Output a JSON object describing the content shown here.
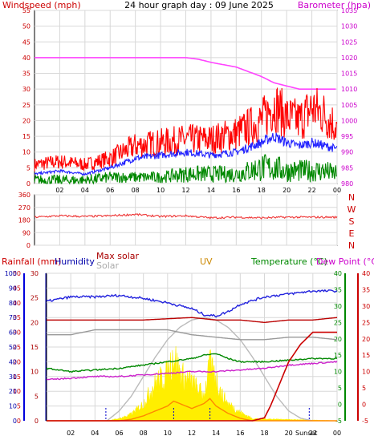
{
  "chart_data": [
    {
      "type": "line",
      "title": "24 hour graph day : 09 June 2025",
      "left_axis_label": "Windspeed (mph)",
      "right_axis_label": "Barometer (hpa)",
      "left_ylim": [
        0,
        55
      ],
      "left_ticks": [
        "0",
        "5",
        "10",
        "15",
        "20",
        "25",
        "30",
        "35",
        "40",
        "45",
        "50",
        "55"
      ],
      "right_ylim": [
        980,
        1035
      ],
      "right_ticks": [
        "980",
        "985",
        "990",
        "995",
        "1000",
        "1005",
        "1010",
        "1015",
        "1020",
        "1025",
        "1030",
        "1035"
      ],
      "x_ticks": [
        "02",
        "04",
        "06",
        "08",
        "10",
        "12",
        "14",
        "16",
        "18",
        "20",
        "22",
        "00"
      ],
      "grid": true,
      "series": [
        {
          "key": "barometer",
          "axis": "right",
          "color": "#ff44ff",
          "x": [
            0,
            2,
            4,
            8,
            12,
            13,
            14,
            16,
            18,
            19,
            20,
            21,
            22,
            23,
            24
          ],
          "values": [
            1020,
            1020,
            1020,
            1020,
            1020,
            1019.5,
            1018.5,
            1017,
            1014,
            1012,
            1011,
            1010,
            1010,
            1010,
            1010
          ]
        },
        {
          "key": "wind_gust",
          "axis": "left",
          "color": "#ff0000",
          "x": [
            0,
            2,
            4,
            6,
            8,
            10,
            12,
            14,
            16,
            18,
            19,
            20,
            21,
            22,
            23,
            24
          ],
          "values": [
            6,
            7,
            6,
            8,
            12,
            13,
            14,
            14,
            16,
            20,
            25,
            21,
            20,
            24,
            22,
            18
          ]
        },
        {
          "key": "wind_avg",
          "axis": "left",
          "color": "#2222ff",
          "x": [
            0,
            2,
            4,
            6,
            8,
            10,
            12,
            14,
            16,
            18,
            19,
            20,
            21,
            22,
            23,
            24
          ],
          "values": [
            3,
            4,
            3,
            5,
            8,
            9,
            10,
            9,
            10,
            13,
            15,
            13,
            12,
            13,
            12,
            11
          ]
        },
        {
          "key": "wind_min",
          "axis": "left",
          "color": "#008800",
          "x": [
            0,
            2,
            4,
            6,
            8,
            10,
            12,
            14,
            16,
            18,
            19,
            20,
            21,
            22,
            23,
            24
          ],
          "values": [
            1,
            1,
            1,
            2,
            2,
            2,
            3,
            3,
            3,
            5,
            5,
            4,
            4,
            4,
            4,
            3
          ]
        }
      ]
    },
    {
      "type": "line",
      "title": "",
      "y_ticks": [
        "0",
        "90",
        "180",
        "270",
        "360"
      ],
      "ylim": [
        0,
        360
      ],
      "compass_labels": [
        "N",
        "W",
        "S",
        "E",
        "N"
      ],
      "grid": true,
      "series": [
        {
          "key": "wind_direction",
          "color": "#ee3333",
          "x": [
            0,
            2,
            4,
            6,
            8,
            10,
            12,
            14,
            16,
            18,
            20,
            22,
            24
          ],
          "values": [
            200,
            210,
            205,
            210,
            220,
            205,
            210,
            195,
            200,
            195,
            200,
            200,
            200
          ]
        }
      ]
    },
    {
      "type": "line",
      "legend": [
        {
          "text": "Rainfall (mm)",
          "color": "#cc0000"
        },
        {
          "text": "Humidity",
          "color": "#0000aa"
        },
        {
          "text": "Max solar",
          "color": "#aa0000"
        },
        {
          "text": "Solar",
          "color": "#aaaaaa"
        },
        {
          "text": "UV",
          "color": "#cc8800"
        },
        {
          "text": "Temperature (°C)",
          "color": "#008800"
        },
        {
          "text": "Dew Point (°C)",
          "color": "#cc00cc"
        }
      ],
      "rain_ticks": [
        "0",
        "5",
        "10",
        "15",
        "20",
        "25",
        "30",
        "35",
        "40",
        "45",
        "50"
      ],
      "humidity_ticks": [
        "0",
        "10",
        "20",
        "30",
        "40",
        "50",
        "60",
        "70",
        "80",
        "90",
        "100"
      ],
      "uv_ticks": [
        "0",
        "5",
        "10",
        "15",
        "20",
        "25",
        "30"
      ],
      "temperature_ticks": [
        "-5",
        "0",
        "5",
        "10",
        "15",
        "20",
        "25",
        "30",
        "35",
        "40"
      ],
      "dewpoint_ticks": [
        "-5",
        "0",
        "5",
        "10",
        "15",
        "20",
        "25",
        "30",
        "35",
        "40"
      ],
      "x_ticks": [
        "02",
        "04",
        "06",
        "08",
        "10",
        "12",
        "14",
        "16",
        "18",
        "20",
        "22",
        "00"
      ],
      "annotation": "Sunset",
      "grid": true,
      "series": [
        {
          "key": "humidity",
          "color": "#2222dd",
          "scale": "humidity",
          "x": [
            0,
            2,
            4,
            6,
            8,
            10,
            12,
            13,
            14,
            15,
            16,
            18,
            20,
            22,
            24
          ],
          "values": [
            81,
            84,
            84,
            85,
            83,
            80,
            76,
            72,
            71,
            74,
            79,
            84,
            86,
            88,
            88
          ]
        },
        {
          "key": "max_solar",
          "color": "#bb0000",
          "scale": "uv",
          "x": [
            0,
            4,
            8,
            12,
            14,
            16,
            18,
            20,
            22,
            24
          ],
          "values": [
            20.5,
            20.5,
            20.5,
            21,
            20.5,
            20.5,
            20,
            20.5,
            20.5,
            21
          ]
        },
        {
          "key": "solar_flat",
          "color": "#999999",
          "scale": "uv",
          "x": [
            0,
            2,
            4,
            6,
            8,
            10,
            12,
            14,
            16,
            18,
            20,
            22,
            24
          ],
          "values": [
            17.5,
            17.5,
            18.5,
            18.5,
            18.5,
            18.5,
            17.5,
            17,
            16.5,
            16.5,
            17,
            17,
            16.5
          ]
        },
        {
          "key": "temperature",
          "color": "#008800",
          "scale": "temperature",
          "x": [
            0,
            2,
            4,
            6,
            8,
            10,
            12,
            13,
            14,
            15,
            16,
            18,
            20,
            22,
            24
          ],
          "values": [
            11,
            10,
            10.5,
            11,
            12,
            13,
            14,
            15,
            15.5,
            14,
            13,
            13,
            13.5,
            14,
            14
          ]
        },
        {
          "key": "dew_point",
          "color": "#cc22cc",
          "scale": "temperature",
          "x": [
            0,
            2,
            4,
            6,
            8,
            10,
            12,
            14,
            16,
            18,
            20,
            22,
            24
          ],
          "values": [
            7.5,
            8,
            8.5,
            8.5,
            9,
            9.5,
            10,
            10,
            10.5,
            11,
            12,
            12.5,
            13
          ]
        },
        {
          "key": "solar_radiation",
          "color": "#ffee00",
          "scale": "uv",
          "fill": true,
          "x": [
            0,
            5,
            6,
            7,
            8,
            9,
            10,
            10.5,
            11,
            12,
            13,
            13.5,
            14,
            14.5,
            15,
            16,
            17,
            24
          ],
          "values": [
            0,
            0,
            0.5,
            1.5,
            4,
            9,
            11,
            16,
            11,
            9,
            6,
            13,
            10,
            6,
            4,
            2,
            0.5,
            0
          ]
        },
        {
          "key": "theoretical_solar",
          "color": "#bbbbbb",
          "scale": "uv",
          "x": [
            5,
            6,
            7,
            8,
            9,
            10,
            11,
            12,
            13,
            14,
            15,
            16,
            17,
            18,
            19,
            20,
            21,
            22
          ],
          "values": [
            0,
            2,
            5,
            9,
            13,
            16.5,
            19,
            20.5,
            21,
            20.5,
            19,
            16.5,
            13,
            9,
            5,
            2,
            0.5,
            0
          ]
        },
        {
          "key": "uv",
          "color": "#ff8800",
          "scale": "uv",
          "x": [
            0,
            6,
            7,
            8,
            9,
            10,
            10.5,
            11,
            12,
            13,
            13.5,
            14,
            15,
            16,
            17,
            24
          ],
          "values": [
            0,
            0,
            0.3,
            1,
            2,
            3,
            4,
            3.5,
            2.5,
            3.5,
            4.5,
            3,
            1.5,
            0.5,
            0,
            0
          ]
        },
        {
          "key": "rainfall",
          "color": "#cc0000",
          "scale": "rain",
          "x": [
            0,
            16,
            17,
            18,
            18.5,
            19,
            19.5,
            20,
            21,
            21.5,
            22,
            22.5,
            24
          ],
          "values": [
            0,
            0,
            0,
            1,
            5,
            10,
            15,
            20,
            26,
            28,
            30,
            30,
            30
          ]
        }
      ]
    }
  ]
}
